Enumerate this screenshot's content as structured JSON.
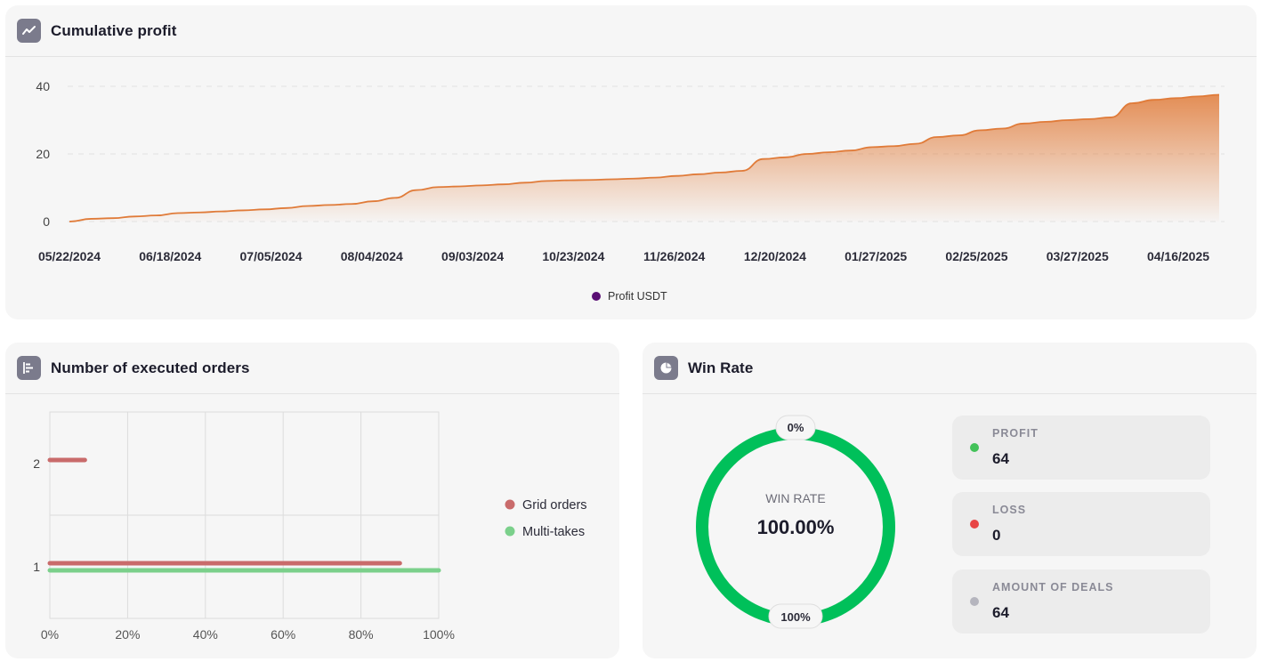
{
  "cumulative": {
    "title": "Cumulative profit",
    "icon": "trend-line-icon",
    "legend_label": "Profit USDT",
    "legend_color": "#5a0f74",
    "line_color": "#e07b39"
  },
  "orders": {
    "title": "Number of executed orders",
    "icon": "bar-chart-icon"
  },
  "winrate": {
    "title": "Win Rate",
    "icon": "pie-chart-icon",
    "center_label": "WIN RATE",
    "center_value": "100.00%",
    "top_badge": "0%",
    "bottom_badge": "100%",
    "ring_color": "#00c05a",
    "stats": [
      {
        "label": "PROFIT",
        "value": "64",
        "color": "#43c259"
      },
      {
        "label": "LOSS",
        "value": "0",
        "color": "#e84646"
      },
      {
        "label": "AMOUNT OF DEALS",
        "value": "64",
        "color": "#b5b5be"
      }
    ]
  },
  "chart_data": [
    {
      "type": "area",
      "title": "Cumulative profit",
      "x_tick_labels": [
        "05/22/2024",
        "06/18/2024",
        "07/05/2024",
        "08/04/2024",
        "09/03/2024",
        "10/23/2024",
        "11/26/2024",
        "12/20/2024",
        "01/27/2025",
        "02/25/2025",
        "03/27/2025",
        "04/16/2025"
      ],
      "y_ticks": [
        0,
        20,
        40
      ],
      "ylim": [
        0,
        40
      ],
      "series": [
        {
          "name": "Profit USDT",
          "values": [
            0,
            0.8,
            1.0,
            1.5,
            1.8,
            2.5,
            2.7,
            3.0,
            3.3,
            3.6,
            4.0,
            4.6,
            4.9,
            5.2,
            6.0,
            7.0,
            9.3,
            10.2,
            10.4,
            10.7,
            11.0,
            11.5,
            12.0,
            12.2,
            12.3,
            12.5,
            12.7,
            13.0,
            13.5,
            14.0,
            14.5,
            15.0,
            18.5,
            19.0,
            20.0,
            20.5,
            21.0,
            22.0,
            22.3,
            23.0,
            25.0,
            25.5,
            27.0,
            27.5,
            29.0,
            29.5,
            30.0,
            30.3,
            30.8,
            35.0,
            36.0,
            36.5,
            37.0,
            37.5
          ]
        }
      ],
      "legend": "bottom-center",
      "grid": true
    },
    {
      "type": "bar",
      "orientation": "horizontal",
      "title": "Number of executed orders",
      "categories": [
        "1",
        "2"
      ],
      "series": [
        {
          "name": "Grid orders",
          "color": "#c96b6b",
          "values": [
            90,
            9
          ]
        },
        {
          "name": "Multi-takes",
          "color": "#7bd08b",
          "values": [
            100,
            0
          ]
        }
      ],
      "x_ticks": [
        "0%",
        "20%",
        "40%",
        "60%",
        "80%",
        "100%"
      ],
      "xlim": [
        0,
        100
      ],
      "legend": "right",
      "grid": true
    },
    {
      "type": "pie",
      "title": "Win Rate",
      "labels": [
        "PROFIT",
        "LOSS"
      ],
      "values": [
        64,
        0
      ],
      "ring": true
    }
  ]
}
